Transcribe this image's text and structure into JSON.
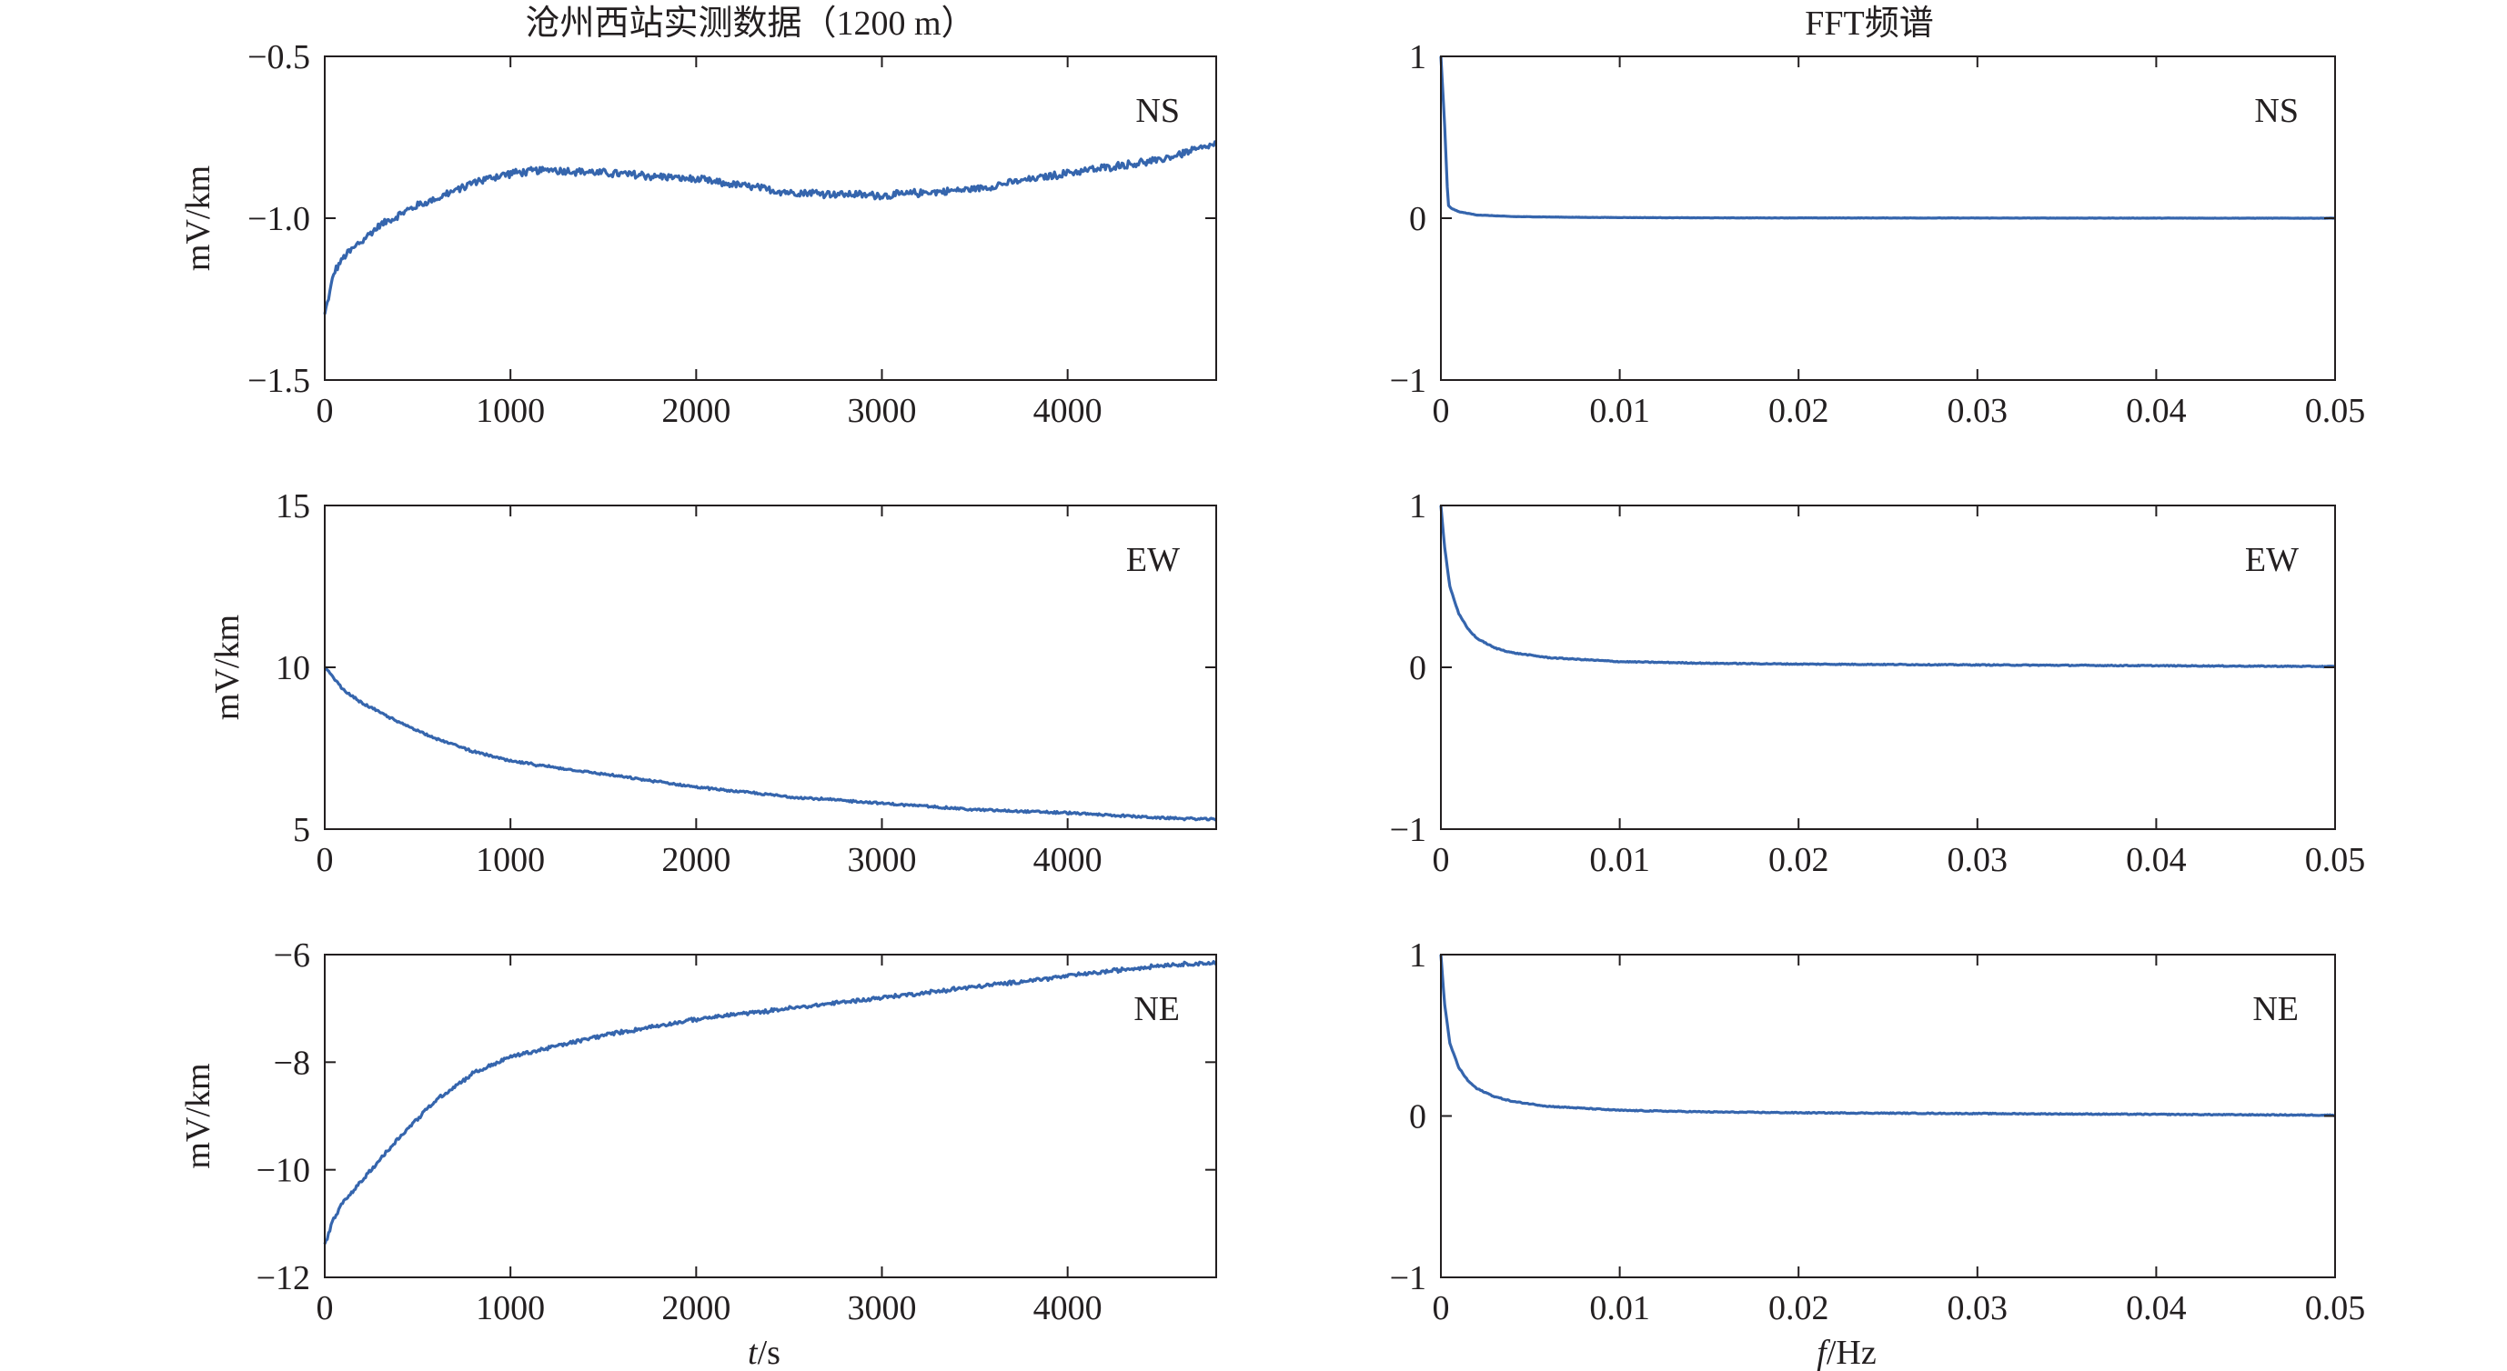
{
  "titles": {
    "left": "沧州西站实测数据（1200 m）",
    "right": "FFT频谱"
  },
  "xlabels": {
    "left_italic": "t",
    "left_unit": "/s",
    "right_italic": "f",
    "right_unit": "/Hz"
  },
  "colors": {
    "line": "#3565ad",
    "axis": "#231f20",
    "background": "#ffffff"
  },
  "chart_data": [
    {
      "type": "line",
      "panel": "time-NS",
      "tag": "NS",
      "ylabel": "mV/km",
      "xlim": [
        0,
        4800
      ],
      "ylim": [
        -1.5,
        -0.5
      ],
      "xticks": [
        "0",
        "1000",
        "2000",
        "3000",
        "4000"
      ],
      "xtick_values": [
        0,
        1000,
        2000,
        3000,
        4000
      ],
      "yticks": [
        "−1.5",
        "−1.0",
        "−0.5"
      ],
      "ytick_values": [
        -1.5,
        -1.0,
        -0.5
      ],
      "series": [
        {
          "x": [
            0,
            50,
            100,
            200,
            300,
            400,
            500,
            600,
            800,
            1000,
            1200,
            1500,
            2000,
            2500,
            3000,
            3500,
            4000,
            4500,
            4800
          ],
          "y": [
            -1.3,
            -1.17,
            -1.12,
            -1.07,
            -1.02,
            -0.99,
            -0.96,
            -0.94,
            -0.89,
            -0.86,
            -0.85,
            -0.86,
            -0.88,
            -0.92,
            -0.93,
            -0.91,
            -0.86,
            -0.82,
            -0.77
          ],
          "noise": 0.02
        }
      ]
    },
    {
      "type": "line",
      "panel": "fft-NS",
      "tag": "NS",
      "xlim": [
        0,
        0.05
      ],
      "ylim": [
        -1,
        1
      ],
      "xticks": [
        "0",
        "0.01",
        "0.02",
        "0.03",
        "0.04",
        "0.05"
      ],
      "xtick_values": [
        0,
        0.01,
        0.02,
        0.03,
        0.04,
        0.05
      ],
      "yticks": [
        "−1",
        "0",
        "1"
      ],
      "ytick_values": [
        -1,
        0,
        1
      ],
      "series": [
        {
          "x": [
            0,
            0.0002,
            0.0004,
            0.0006,
            0.001,
            0.002,
            0.004,
            0.008,
            0.015,
            0.03,
            0.05
          ],
          "y": [
            1.0,
            0.6,
            0.08,
            0.06,
            0.04,
            0.02,
            0.01,
            0.005,
            0.002,
            0.001,
            0.0
          ],
          "noise": 0.002
        }
      ]
    },
    {
      "type": "line",
      "panel": "time-EW",
      "tag": "EW",
      "ylabel": "mV/km",
      "xlim": [
        0,
        4800
      ],
      "ylim": [
        5,
        15
      ],
      "xticks": [
        "0",
        "1000",
        "2000",
        "3000",
        "4000"
      ],
      "xtick_values": [
        0,
        1000,
        2000,
        3000,
        4000
      ],
      "yticks": [
        "5",
        "10",
        "15"
      ],
      "ytick_values": [
        5,
        10,
        15
      ],
      "series": [
        {
          "x": [
            0,
            100,
            200,
            400,
            600,
            800,
            1000,
            1500,
            2000,
            2500,
            3000,
            3500,
            4000,
            4500,
            4800
          ],
          "y": [
            10.0,
            9.3,
            8.9,
            8.3,
            7.8,
            7.4,
            7.1,
            6.7,
            6.3,
            6.0,
            5.8,
            5.6,
            5.5,
            5.35,
            5.3
          ],
          "noise": 0.06
        }
      ]
    },
    {
      "type": "line",
      "panel": "fft-EW",
      "tag": "EW",
      "xlim": [
        0,
        0.05
      ],
      "ylim": [
        -1,
        1
      ],
      "xticks": [
        "0",
        "0.01",
        "0.02",
        "0.03",
        "0.04",
        "0.05"
      ],
      "xtick_values": [
        0,
        0.01,
        0.02,
        0.03,
        0.04,
        0.05
      ],
      "yticks": [
        "−1",
        "0",
        "1"
      ],
      "ytick_values": [
        -1,
        0,
        1
      ],
      "series": [
        {
          "x": [
            0,
            0.0002,
            0.0005,
            0.001,
            0.0015,
            0.002,
            0.003,
            0.004,
            0.006,
            0.01,
            0.015,
            0.02,
            0.03,
            0.04,
            0.05
          ],
          "y": [
            1.0,
            0.75,
            0.5,
            0.33,
            0.24,
            0.18,
            0.12,
            0.09,
            0.06,
            0.035,
            0.025,
            0.02,
            0.015,
            0.01,
            0.005
          ],
          "noise": 0.006
        }
      ]
    },
    {
      "type": "line",
      "panel": "time-NE",
      "tag": "NE",
      "ylabel": "mV/km",
      "xlabel": "t/s",
      "xlim": [
        0,
        4800
      ],
      "ylim": [
        -12,
        -6
      ],
      "xticks": [
        "0",
        "1000",
        "2000",
        "3000",
        "4000"
      ],
      "xtick_values": [
        0,
        1000,
        2000,
        3000,
        4000
      ],
      "yticks": [
        "−12",
        "−10",
        "−8",
        "−6"
      ],
      "ytick_values": [
        -12,
        -10,
        -8,
        -6
      ],
      "series": [
        {
          "x": [
            0,
            50,
            100,
            200,
            400,
            600,
            800,
            1000,
            1500,
            2000,
            2500,
            3000,
            3500,
            4000,
            4500,
            4800
          ],
          "y": [
            -11.4,
            -10.9,
            -10.6,
            -10.2,
            -9.4,
            -8.7,
            -8.2,
            -7.9,
            -7.5,
            -7.2,
            -7.0,
            -6.8,
            -6.6,
            -6.4,
            -6.2,
            -6.15
          ],
          "noise": 0.06
        }
      ]
    },
    {
      "type": "line",
      "panel": "fft-NE",
      "tag": "NE",
      "xlabel": "f/Hz",
      "xlim": [
        0,
        0.05
      ],
      "ylim": [
        -1,
        1
      ],
      "xticks": [
        "0",
        "0.01",
        "0.02",
        "0.03",
        "0.04",
        "0.05"
      ],
      "xtick_values": [
        0,
        0.01,
        0.02,
        0.03,
        0.04,
        0.05
      ],
      "yticks": [
        "−1",
        "0",
        "1"
      ],
      "ytick_values": [
        -1,
        0,
        1
      ],
      "series": [
        {
          "x": [
            0,
            0.0002,
            0.0005,
            0.001,
            0.0015,
            0.002,
            0.003,
            0.004,
            0.006,
            0.01,
            0.015,
            0.02,
            0.03,
            0.04,
            0.05
          ],
          "y": [
            1.0,
            0.7,
            0.45,
            0.3,
            0.22,
            0.17,
            0.12,
            0.09,
            0.06,
            0.035,
            0.025,
            0.02,
            0.015,
            0.01,
            0.005
          ],
          "noise": 0.006
        }
      ]
    }
  ]
}
